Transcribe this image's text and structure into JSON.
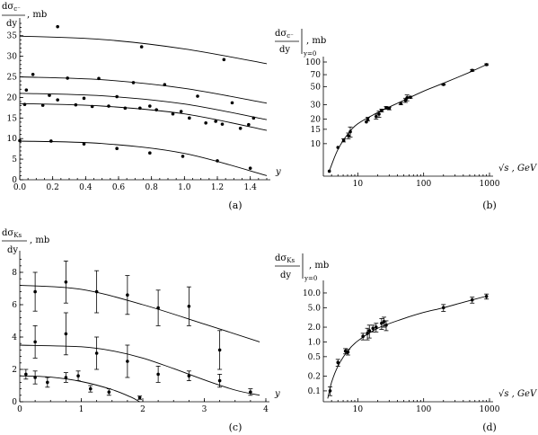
{
  "chart_data": [
    {
      "id": "a",
      "type": "scatter",
      "caption": "(a)",
      "ylabel": "dσc⁻ / dy , mb",
      "xlabel": "y",
      "xlim": [
        0,
        1.5
      ],
      "ylim": [
        0,
        38
      ],
      "xticks": [
        "0.0",
        "0.2",
        "0.4",
        "0.6",
        "0.8",
        "1.0",
        "1.2",
        "1.4"
      ],
      "xtick_values": [
        0,
        0.2,
        0.4,
        0.6,
        0.8,
        1.0,
        1.2,
        1.4
      ],
      "yticks": [
        "0",
        "5",
        "10",
        "15",
        "20",
        "25",
        "30",
        "35"
      ],
      "ytick_values": [
        0,
        5,
        10,
        15,
        20,
        25,
        30,
        35
      ],
      "series": [
        {
          "curve": [
            [
              0,
              34.9
            ],
            [
              0.5,
              34.1
            ],
            [
              1.0,
              31.8
            ],
            [
              1.5,
              28.2
            ]
          ],
          "points": [
            [
              0.23,
              37.2
            ],
            [
              0.74,
              32.3
            ],
            [
              1.24,
              29.2
            ]
          ]
        },
        {
          "curve": [
            [
              0,
              25.0
            ],
            [
              0.5,
              24.3
            ],
            [
              1.0,
              22.2
            ],
            [
              1.5,
              18.6
            ]
          ],
          "points": [
            [
              0.04,
              21.8
            ],
            [
              0.08,
              25.6
            ],
            [
              0.29,
              24.7
            ],
            [
              0.48,
              24.6
            ],
            [
              0.69,
              23.6
            ],
            [
              0.88,
              23.1
            ],
            [
              1.08,
              20.3
            ],
            [
              1.29,
              18.7
            ],
            [
              1.42,
              15.0
            ]
          ]
        },
        {
          "curve": [
            [
              0,
              21.0
            ],
            [
              0.5,
              20.4
            ],
            [
              1.0,
              18.4
            ],
            [
              1.5,
              14.6
            ]
          ],
          "points": [
            [
              0.18,
              20.5
            ],
            [
              0.39,
              19.8
            ],
            [
              0.59,
              20.2
            ],
            [
              0.79,
              17.9
            ],
            [
              0.98,
              16.6
            ],
            [
              1.19,
              14.2
            ],
            [
              1.39,
              13.4
            ]
          ]
        },
        {
          "curve": [
            [
              0,
              18.5
            ],
            [
              0.5,
              17.9
            ],
            [
              1.0,
              16.0
            ],
            [
              1.5,
              12.0
            ]
          ],
          "points": [
            [
              0.03,
              18.3
            ],
            [
              0.14,
              18.1
            ],
            [
              0.23,
              19.4
            ],
            [
              0.34,
              18.2
            ],
            [
              0.44,
              17.8
            ],
            [
              0.54,
              17.9
            ],
            [
              0.64,
              17.4
            ],
            [
              0.73,
              17.4
            ],
            [
              0.83,
              17.0
            ],
            [
              0.93,
              16.0
            ],
            [
              1.03,
              15.0
            ],
            [
              1.13,
              13.8
            ],
            [
              1.23,
              13.5
            ],
            [
              1.34,
              12.5
            ]
          ]
        },
        {
          "curve": [
            [
              0,
              9.4
            ],
            [
              0.5,
              8.8
            ],
            [
              1.0,
              6.4
            ],
            [
              1.5,
              1.0
            ]
          ],
          "points": [
            [
              0.0,
              9.5
            ],
            [
              0.19,
              9.4
            ],
            [
              0.39,
              8.7
            ],
            [
              0.59,
              7.6
            ],
            [
              0.79,
              6.5
            ],
            [
              0.99,
              5.7
            ],
            [
              1.2,
              4.6
            ],
            [
              1.4,
              2.8
            ]
          ]
        }
      ]
    },
    {
      "id": "b",
      "type": "line",
      "caption": "(b)",
      "ylabel": "dσc⁻ / dy |y=0 , mb",
      "xlabel": "√s , GeV",
      "xlim": [
        3,
        1000
      ],
      "ylim": [
        4,
        100
      ],
      "xscale": "log",
      "yscale": "log",
      "xticks": [
        "10",
        "100",
        "1000"
      ],
      "xtick_values": [
        10,
        100,
        1000
      ],
      "yticks": [
        "10",
        "15",
        "20",
        "30",
        "50",
        "70",
        "100"
      ],
      "ytick_values": [
        10,
        15,
        20,
        30,
        50,
        70,
        100
      ],
      "curve": [
        [
          3.7,
          4.6
        ],
        [
          4,
          5.5
        ],
        [
          5,
          8.5
        ],
        [
          7,
          13
        ],
        [
          10,
          17.5
        ],
        [
          20,
          24
        ],
        [
          50,
          34
        ],
        [
          100,
          44
        ],
        [
          200,
          55
        ],
        [
          500,
          75
        ],
        [
          900,
          93
        ]
      ],
      "points": [
        [
          3.7,
          4.6,
          0
        ],
        [
          5,
          9,
          0
        ],
        [
          6.1,
          11,
          0.5
        ],
        [
          7.2,
          12.5,
          1
        ],
        [
          7.7,
          14,
          2
        ],
        [
          13.5,
          18.5,
          0
        ],
        [
          14.2,
          20,
          1
        ],
        [
          19,
          21.5,
          1.5
        ],
        [
          21,
          23,
          2
        ],
        [
          23,
          25.5,
          1
        ],
        [
          27,
          27.5,
          1
        ],
        [
          30,
          27,
          1
        ],
        [
          45,
          31,
          1
        ],
        [
          53,
          34,
          2
        ],
        [
          56,
          36.5,
          3
        ],
        [
          63,
          37,
          1
        ],
        [
          200,
          53,
          1
        ],
        [
          546,
          79,
          2
        ],
        [
          900,
          93,
          2
        ]
      ]
    },
    {
      "id": "c",
      "type": "scatter",
      "caption": "(c)",
      "ylabel": "dσKs / dy , mb",
      "xlabel": "y",
      "xlim": [
        0,
        4
      ],
      "ylim": [
        0,
        9
      ],
      "xticks": [
        "0",
        "1",
        "2",
        "3",
        "4"
      ],
      "xtick_values": [
        0,
        1,
        2,
        3,
        4
      ],
      "yticks": [
        "0",
        "2",
        "4",
        "6",
        "8"
      ],
      "ytick_values": [
        0,
        2,
        4,
        6,
        8
      ],
      "series": [
        {
          "curve": [
            [
              0,
              7.2
            ],
            [
              1,
              6.95
            ],
            [
              2,
              6.0
            ],
            [
              3,
              4.8
            ],
            [
              3.9,
              3.7
            ]
          ],
          "points": [
            [
              0.25,
              6.8,
              1.2
            ],
            [
              0.75,
              7.4,
              1.3
            ],
            [
              1.25,
              6.8,
              1.3
            ],
            [
              1.75,
              6.6,
              1.2
            ],
            [
              2.25,
              5.8,
              1.1
            ],
            [
              2.75,
              5.9,
              1.2
            ]
          ]
        },
        {
          "curve": [
            [
              0,
              3.5
            ],
            [
              1,
              3.4
            ],
            [
              1.5,
              3.15
            ],
            [
              2,
              2.7
            ],
            [
              2.5,
              2.05
            ],
            [
              3,
              1.35
            ],
            [
              3.5,
              0.72
            ],
            [
              3.9,
              0.4
            ]
          ],
          "points": [
            [
              0.25,
              3.7,
              1.0
            ],
            [
              0.75,
              4.2,
              1.3
            ],
            [
              1.25,
              3.0,
              1.0
            ],
            [
              1.75,
              2.5,
              1.0
            ],
            [
              2.25,
              1.7,
              0.5
            ],
            [
              2.75,
              1.6,
              0.3
            ],
            [
              3.25,
              3.2,
              1.2
            ],
            [
              3.25,
              1.3,
              0.4
            ],
            [
              3.75,
              0.6,
              0.2
            ]
          ]
        },
        {
          "curve": [
            [
              0,
              1.6
            ],
            [
              0.5,
              1.52
            ],
            [
              1,
              1.25
            ],
            [
              1.5,
              0.75
            ],
            [
              1.8,
              0.3
            ],
            [
              1.95,
              0.0
            ]
          ],
          "points": [
            [
              0.1,
              1.7,
              0.3
            ],
            [
              0.25,
              1.5,
              0.4
            ],
            [
              0.45,
              1.2,
              0.3
            ],
            [
              0.75,
              1.5,
              0.3
            ],
            [
              0.95,
              1.6,
              0.3
            ],
            [
              1.15,
              0.8,
              0.2
            ],
            [
              1.45,
              0.6,
              0.2
            ],
            [
              1.95,
              0.25,
              0.1
            ]
          ]
        }
      ]
    },
    {
      "id": "d",
      "type": "line",
      "caption": "(d)",
      "ylabel": "dσKs / dy |y=0 , mb",
      "xlabel": "√s , GeV",
      "xlim": [
        3,
        1000
      ],
      "ylim": [
        0.06,
        14
      ],
      "xscale": "log",
      "yscale": "log",
      "xticks": [
        "10",
        "100",
        "1000"
      ],
      "xtick_values": [
        10,
        100,
        1000
      ],
      "yticks": [
        "0.1",
        "0.2",
        "0.5",
        "1.0",
        "2.0",
        "5.0",
        "10.0"
      ],
      "ytick_values": [
        0.1,
        0.2,
        0.5,
        1.0,
        2.0,
        5.0,
        10.0
      ],
      "curve": [
        [
          3.5,
          0.07
        ],
        [
          4,
          0.15
        ],
        [
          5,
          0.32
        ],
        [
          7,
          0.65
        ],
        [
          10,
          1.05
        ],
        [
          20,
          1.9
        ],
        [
          50,
          3.0
        ],
        [
          100,
          4.0
        ],
        [
          200,
          5.0
        ],
        [
          500,
          7.0
        ],
        [
          900,
          8.6
        ]
      ],
      "points": [
        [
          3.8,
          0.1,
          0.02
        ],
        [
          5,
          0.38,
          0.06
        ],
        [
          6.5,
          0.65,
          0.08
        ],
        [
          7.1,
          0.62,
          0.08
        ],
        [
          12,
          1.3,
          0.2
        ],
        [
          14,
          1.5,
          0.4
        ],
        [
          15,
          1.7,
          0.5
        ],
        [
          17,
          1.9,
          0.3
        ],
        [
          19,
          2.0,
          0.4
        ],
        [
          23,
          2.4,
          0.6
        ],
        [
          25,
          2.6,
          0.6
        ],
        [
          27,
          2.2,
          0.5
        ],
        [
          200,
          5.0,
          0.8
        ],
        [
          546,
          7.2,
          1.0
        ],
        [
          900,
          8.5,
          1.0
        ]
      ]
    }
  ]
}
